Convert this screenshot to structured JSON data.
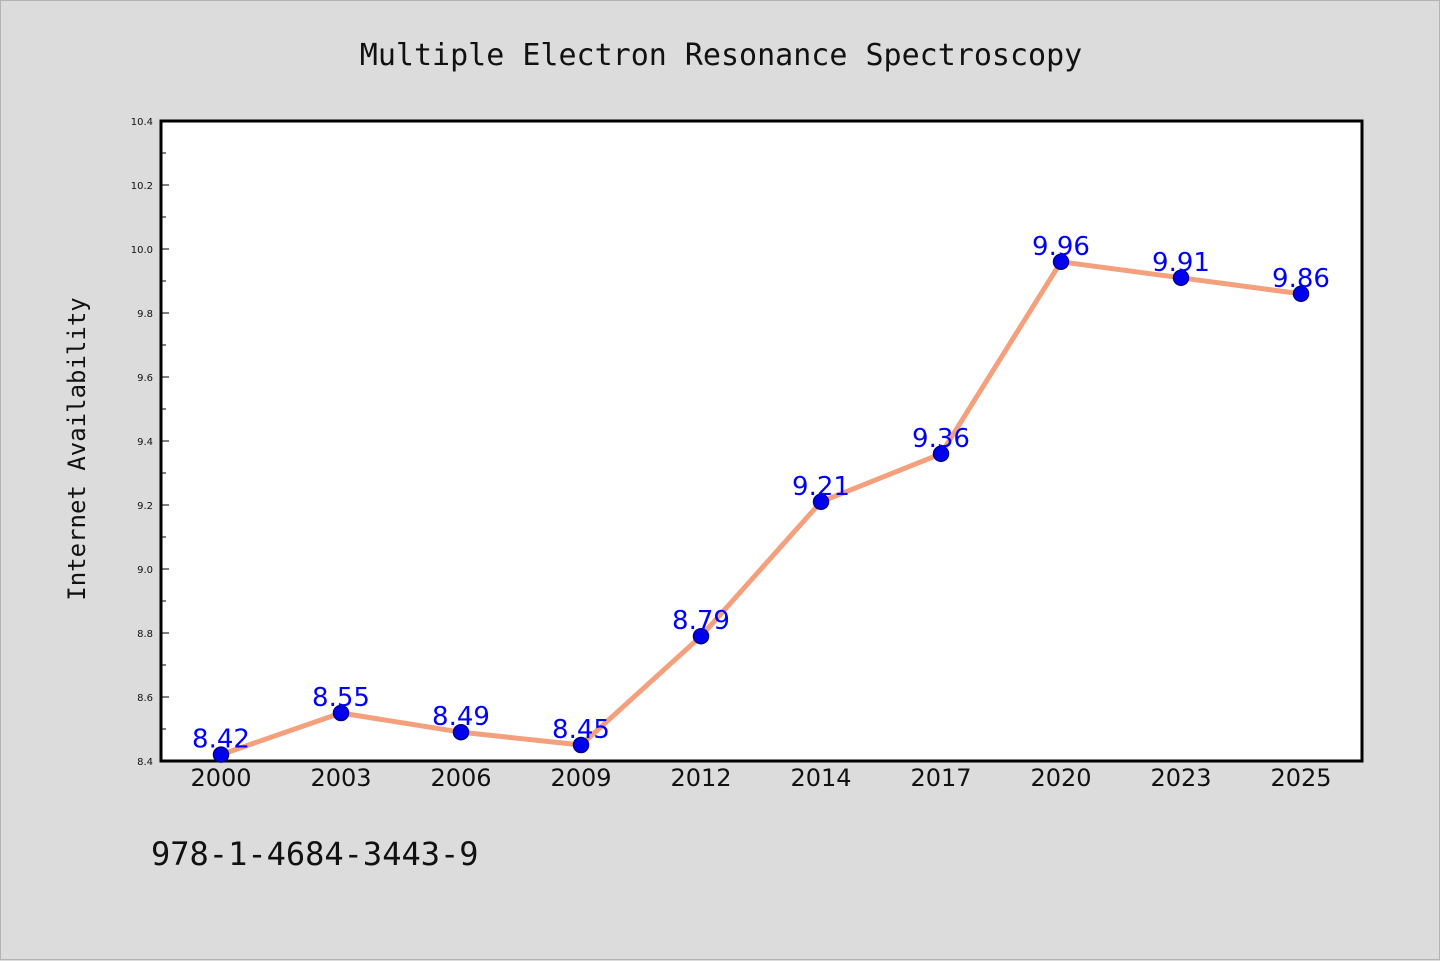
{
  "colors": {
    "background": "#dcdcdc",
    "plot_background": "#ffffff",
    "line": "#f4a07c",
    "marker_fill": "#0000ee",
    "marker_edge": "#00008b",
    "data_label": "#0000ff",
    "axis": "#000000"
  },
  "chart_data": {
    "type": "line",
    "title": "Multiple Electron Resonance Spectroscopy",
    "xlabel": "",
    "ylabel": "Internet Availability",
    "categories": [
      "2000",
      "2003",
      "2006",
      "2009",
      "2012",
      "2014",
      "2017",
      "2020",
      "2023",
      "2025"
    ],
    "series": [
      {
        "values": [
          8.42,
          8.55,
          8.49,
          8.45,
          8.79,
          9.21,
          9.36,
          9.96,
          9.91,
          9.86
        ]
      }
    ],
    "data_labels": [
      "8.42",
      "8.55",
      "8.49",
      "8.45",
      "8.79",
      "9.21",
      "9.36",
      "9.96",
      "9.91",
      "9.86"
    ],
    "ylim": [
      8.4,
      10.4
    ],
    "yticks": [
      "8.4",
      "8.6",
      "8.8",
      "9.0",
      "9.2",
      "9.4",
      "9.6",
      "9.8",
      "10.0",
      "10.2",
      "10.4"
    ],
    "grid": false,
    "legend": "none"
  },
  "footnote": "978-1-4684-3443-9"
}
